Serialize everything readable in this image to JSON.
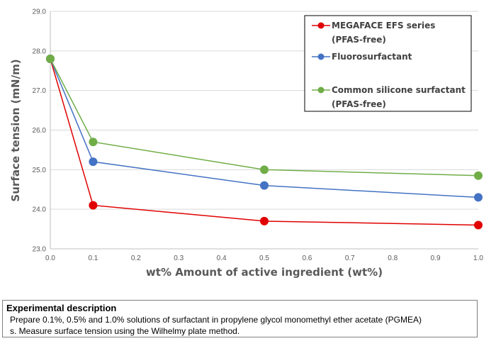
{
  "chart_data": {
    "type": "line",
    "xlabel": "wt%  Amount of active ingredient (wt%)",
    "ylabel": "Surface tension (mN/m)",
    "xlim": [
      0.0,
      1.0
    ],
    "ylim": [
      23.0,
      29.0
    ],
    "x_ticks": [
      "0.0",
      "0.1",
      "0.2",
      "0.3",
      "0.4",
      "0.5",
      "0.6",
      "0.7",
      "0.8",
      "0.9",
      "1.0"
    ],
    "y_ticks": [
      "23.0",
      "24.0",
      "25.0",
      "26.0",
      "27.0",
      "28.0",
      "29.0"
    ],
    "grid": "horizontal",
    "legend_position": "top-right",
    "series": [
      {
        "legend": [
          "MEGAFACE EFS series",
          "(PFAS-free)"
        ],
        "color": "#e00000",
        "x": [
          0.0,
          0.1,
          0.5,
          1.0
        ],
        "y": [
          27.8,
          24.1,
          23.7,
          23.6
        ]
      },
      {
        "legend": [
          "Fluorosurfactant"
        ],
        "color": "#4472c4",
        "x": [
          0.0,
          0.1,
          0.5,
          1.0
        ],
        "y": [
          27.8,
          25.2,
          24.6,
          24.3
        ]
      },
      {
        "legend": [
          "Common silicone surfactant",
          "(PFAS-free)"
        ],
        "color": "#70ad47",
        "x": [
          0.0,
          0.1,
          0.5,
          1.0
        ],
        "y": [
          27.8,
          25.7,
          25.0,
          24.85
        ]
      }
    ]
  },
  "description": {
    "title": "Experimental description",
    "line1": "Prepare 0.1%, 0.5% and 1.0% solutions of surfactant in propylene glycol monomethyl ether acetate (PGMEA)",
    "line2": "s. Measure surface tension using the Wilhelmy plate method."
  }
}
